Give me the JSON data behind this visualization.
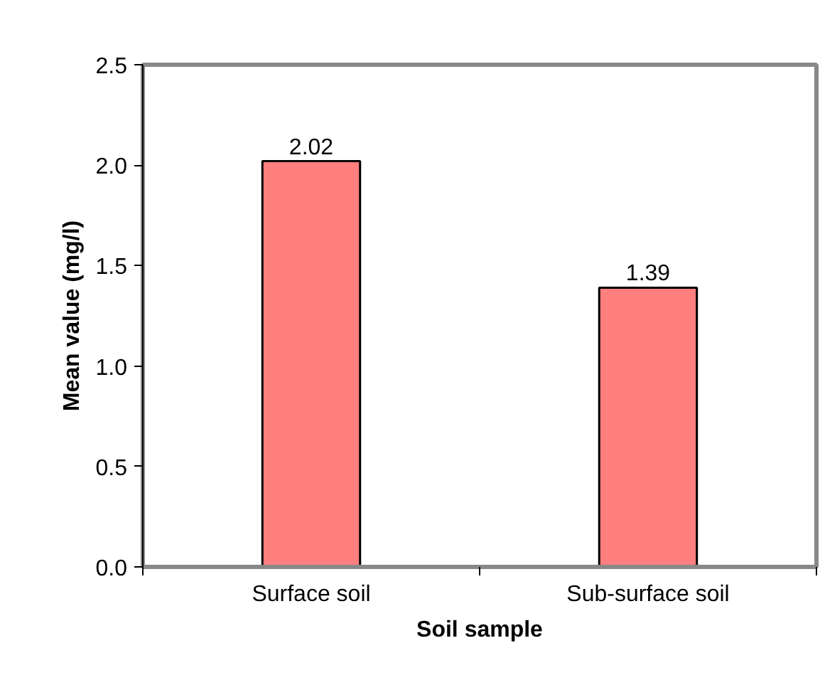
{
  "chart_data": {
    "type": "bar",
    "xlabel": "Soil sample",
    "ylabel": "Mean value (mg/l)",
    "categories": [
      "Surface soil",
      "Sub-surface soil"
    ],
    "values": [
      2.02,
      1.39
    ],
    "color": "#ff7f7f",
    "ylim": [
      0,
      2.5
    ],
    "yticks": [
      {
        "value": 0,
        "label": "0.0"
      },
      {
        "value": 0.5,
        "label": "0.5"
      },
      {
        "value": 1,
        "label": "1.0"
      },
      {
        "value": 1.5,
        "label": "1.5"
      },
      {
        "value": 2,
        "label": "2.0"
      },
      {
        "value": 2.5,
        "label": "2.5"
      }
    ],
    "data_labels": true,
    "grid": false
  }
}
